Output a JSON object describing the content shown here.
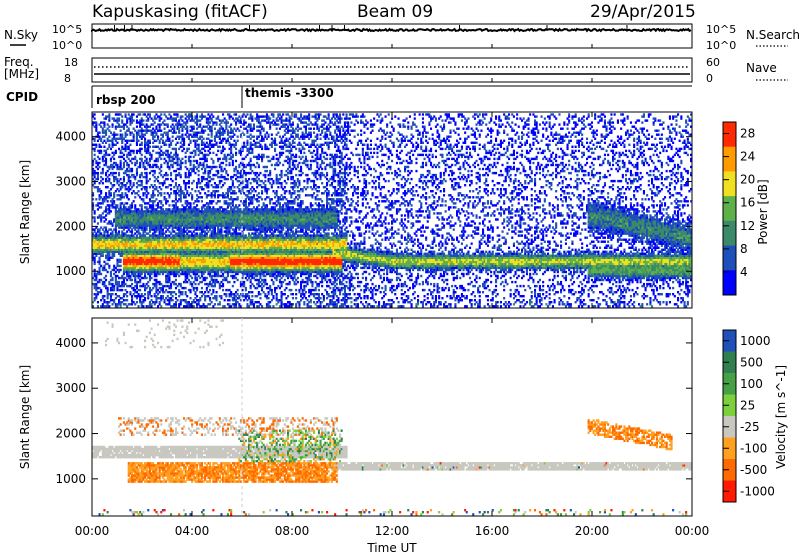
{
  "header": {
    "title": "Kapuskasing (fitACF)",
    "beam": "Beam 09",
    "date": "29/Apr/2015"
  },
  "noise_panel": {
    "left_label": "N.Sky",
    "left_ticks": [
      "10^5",
      "10^0"
    ],
    "right_label": "N.Search",
    "right_ticks": [
      "10^5",
      "10^0"
    ]
  },
  "freq_panel": {
    "left_label_1": "Freq.",
    "left_label_2": "[MHz]",
    "left_ticks": [
      "18",
      "8"
    ],
    "right_label": "Nave",
    "right_ticks": [
      "60",
      "0"
    ]
  },
  "cpid_panel": {
    "label": "CPID",
    "modes": [
      {
        "name": "rbsp 200",
        "start_hour": 0
      },
      {
        "name": "themis -3300",
        "start_hour": 6
      }
    ]
  },
  "x_axis": {
    "label": "Time UT",
    "ticks": [
      "00:00",
      "04:00",
      "08:00",
      "12:00",
      "16:00",
      "20:00",
      "00:00"
    ]
  },
  "chart_data": [
    {
      "type": "heatmap",
      "title": "",
      "quantity": "Power",
      "ylabel": "Slant Range [km]",
      "xlabel": "Time UT",
      "xlim": [
        0,
        24
      ],
      "ylim": [
        180,
        4550
      ],
      "y_ticks": [
        "1000",
        "2000",
        "3000",
        "4000"
      ],
      "colorbar": {
        "label": "Power [dB]",
        "tick_labels": [
          "28",
          "24",
          "20",
          "16",
          "12",
          "8",
          "4"
        ],
        "range": [
          0,
          30
        ],
        "colors": [
          "#0000ff",
          "#1f4fb8",
          "#3a8a6a",
          "#5eb04a",
          "#f0e020",
          "#ff9a00",
          "#ff2a00"
        ]
      },
      "regions": [
        {
          "t": [
            0,
            10.2
          ],
          "r": [
            1500,
            1700
          ],
          "level": "mid"
        },
        {
          "t": [
            1,
            10
          ],
          "r": [
            1050,
            1350
          ],
          "level": "high"
        },
        {
          "t": [
            1,
            9.5
          ],
          "r": [
            1900,
            2350
          ],
          "level": "low"
        },
        {
          "t": [
            10,
            24
          ],
          "r": [
            1100,
            1300
          ],
          "level": "mid"
        },
        {
          "t": [
            20,
            24
          ],
          "r": [
            1500,
            2200
          ],
          "level": "low"
        },
        {
          "t": [
            0.3,
            5.3
          ],
          "r": [
            3900,
            4400
          ],
          "level": "weak"
        }
      ]
    },
    {
      "type": "heatmap",
      "title": "",
      "quantity": "Velocity",
      "ylabel": "Slant Range [km]",
      "xlabel": "Time UT",
      "xlim": [
        0,
        24
      ],
      "ylim": [
        180,
        4550
      ],
      "y_ticks": [
        "1000",
        "2000",
        "3000",
        "4000"
      ],
      "colorbar": {
        "label": "Velocity [m s^-1]",
        "tick_labels": [
          "1000",
          "500",
          "100",
          "25",
          "-25",
          "-100",
          "-500",
          "-1000"
        ],
        "colors": [
          "#1f4fb8",
          "#2f7f4f",
          "#46a046",
          "#7cd03c",
          "#c8c8c0",
          "#ffa020",
          "#ff6a00",
          "#ff1a00"
        ]
      },
      "regions": [
        {
          "t": [
            0,
            24
          ],
          "r": [
            1150,
            1350
          ],
          "velocity_class": "ground (-25 to 25)"
        },
        {
          "t": [
            0,
            10.2
          ],
          "r": [
            1450,
            1700
          ],
          "velocity_class": "ground (-25 to 25)"
        },
        {
          "t": [
            1.5,
            9.5
          ],
          "r": [
            900,
            1300
          ],
          "velocity_class": "-100 to -500"
        },
        {
          "t": [
            6,
            10
          ],
          "r": [
            1300,
            2000
          ],
          "velocity_class": "mixed -100 to 100"
        },
        {
          "t": [
            20,
            23
          ],
          "r": [
            1600,
            2200
          ],
          "velocity_class": "-100 to -500"
        }
      ]
    }
  ]
}
